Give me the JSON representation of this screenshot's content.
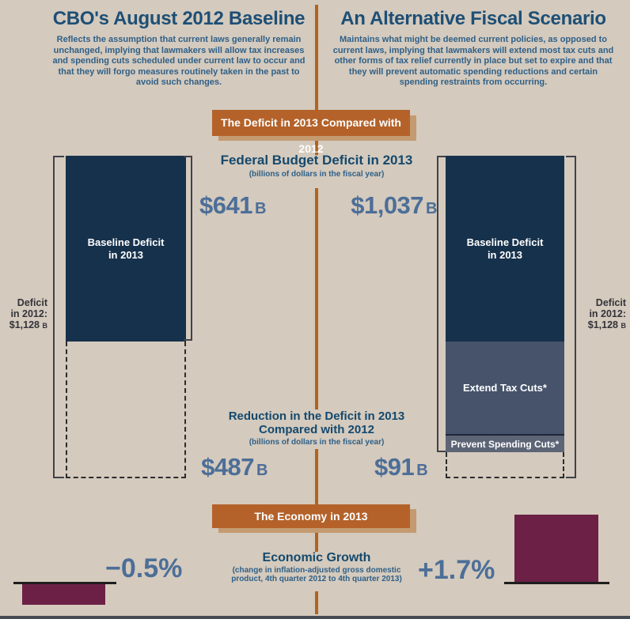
{
  "left_panel": {
    "title": "CBO's August 2012 Baseline",
    "description": "Reflects the assumption that current laws generally remain unchanged, implying that lawmakers will allow tax increases and spending cuts scheduled under current law to occur and that they will forgo measures routinely taken in the past to avoid such changes."
  },
  "right_panel": {
    "title": "An Alternative Fiscal Scenario",
    "description": "Maintains what might be deemed current policies, as opposed to current laws, implying that lawmakers will extend most tax cuts and other forms of tax relief currently in place but set to expire and that they will prevent automatic spending reductions and certain spending restraints from occurring."
  },
  "banners": {
    "deficit": "The Deficit in 2013 Compared with 2012",
    "economy": "The Economy in 2013"
  },
  "deficit_section": {
    "heading": "Federal Budget Deficit in 2013",
    "heading_sub": "(billions of dollars in the fiscal year)",
    "unit": "B",
    "baseline": {
      "value_2013": "$641",
      "bar_label_line1": "Baseline Deficit",
      "bar_label_line2": "in 2013",
      "reduction_value": "$487",
      "deficit_2012_line1": "Deficit",
      "deficit_2012_line2": "in 2012:",
      "deficit_2012_value": "$1,128"
    },
    "alternative": {
      "value_2013": "$1,037",
      "bar_label_line1": "Baseline Deficit",
      "bar_label_line2": "in 2013",
      "segment_extend": "Extend Tax Cuts*",
      "segment_prevent": "Prevent Spending Cuts*",
      "reduction_value": "$91",
      "deficit_2012_line1": "Deficit",
      "deficit_2012_line2": "in 2012:",
      "deficit_2012_value": "$1,128"
    },
    "reduction_heading_line1": "Reduction in the Deficit in 2013",
    "reduction_heading_line2": "Compared with 2012",
    "reduction_sub": "(billions of dollars in the fiscal year)"
  },
  "economy_section": {
    "heading": "Economic Growth",
    "sub_line1": "(change in inflation-adjusted gross domestic",
    "sub_line2": "product, 4th quarter 2012 to 4th quarter 2013)",
    "baseline_growth": "−0.5%",
    "alternative_growth": "+1.7%"
  },
  "colors": {
    "background": "#d4cabd",
    "navy_bar": "#16314c",
    "extend_segment": "#46536b",
    "prevent_segment": "#5d6476",
    "banner_orange": "#b4622a",
    "banner_shadow": "#c49a71",
    "divider_orange": "#b2641f",
    "value_blue": "#4c6e98",
    "heading_blue": "#14496e",
    "growth_maroon": "#6d2045"
  },
  "chart_data": [
    {
      "type": "bar",
      "title": "Federal Budget Deficit in 2013",
      "ylabel": "billions of dollars in the fiscal year",
      "categories": [
        "CBO's August 2012 Baseline",
        "An Alternative Fiscal Scenario"
      ],
      "series": [
        {
          "name": "Baseline Deficit in 2013",
          "values": [
            641,
            641
          ]
        },
        {
          "name": "Extend Tax Cuts",
          "values": [
            0,
            331
          ]
        },
        {
          "name": "Prevent Spending Cuts",
          "values": [
            0,
            65
          ]
        }
      ],
      "totals_2013": [
        641,
        1037
      ],
      "deficit_2012": 1128,
      "reduction_from_2012": [
        487,
        91
      ],
      "annotations": [
        "$641 B",
        "$1,037 B",
        "$487 B",
        "$91 B",
        "Deficit in 2012: $1,128 B"
      ]
    },
    {
      "type": "bar",
      "title": "Economic Growth",
      "subtitle": "change in inflation-adjusted gross domestic product, 4th quarter 2012 to 4th quarter 2013",
      "categories": [
        "CBO's August 2012 Baseline",
        "An Alternative Fiscal Scenario"
      ],
      "values": [
        -0.5,
        1.7
      ],
      "unit": "percent",
      "data_labels": [
        "−0.5%",
        "+1.7%"
      ]
    }
  ]
}
